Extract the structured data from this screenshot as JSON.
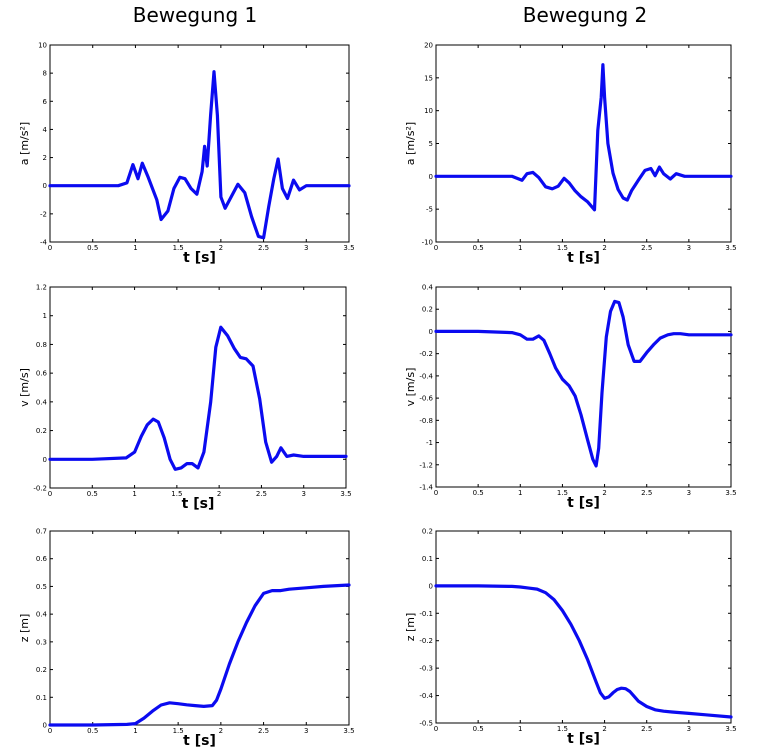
{
  "column_titles": [
    "Bewegung 1",
    "Bewegung 2"
  ],
  "chart_data": [
    {
      "type": "line",
      "xlabel": "t [s]",
      "ylabel": "a [m/s²]",
      "xlim": [
        0,
        3.5
      ],
      "ylim": [
        -4,
        10
      ],
      "xticks": [
        "0",
        "0.5",
        "1",
        "1.5",
        "2",
        "2.5",
        "3",
        "3.5"
      ],
      "yticks": [
        "-4",
        "-2",
        "0",
        "2",
        "4",
        "6",
        "8",
        "10"
      ],
      "x": [
        0,
        0.5,
        0.8,
        0.9,
        0.97,
        1.03,
        1.08,
        1.15,
        1.25,
        1.3,
        1.38,
        1.45,
        1.52,
        1.58,
        1.65,
        1.72,
        1.78,
        1.81,
        1.84,
        1.88,
        1.92,
        1.96,
        2.0,
        2.05,
        2.12,
        2.2,
        2.28,
        2.36,
        2.44,
        2.5,
        2.56,
        2.62,
        2.67,
        2.72,
        2.78,
        2.85,
        2.92,
        3.0,
        3.2,
        3.5
      ],
      "y": [
        0,
        0,
        0,
        0.2,
        1.5,
        0.5,
        1.6,
        0.6,
        -1.0,
        -2.4,
        -1.8,
        -0.2,
        0.6,
        0.5,
        -0.2,
        -0.6,
        1.0,
        2.8,
        1.4,
        5.0,
        8.1,
        5.0,
        -0.8,
        -1.6,
        -0.8,
        0.1,
        -0.5,
        -2.2,
        -3.6,
        -3.7,
        -1.5,
        0.5,
        1.9,
        -0.2,
        -0.9,
        0.4,
        -0.3,
        0,
        0,
        0
      ]
    },
    {
      "type": "line",
      "xlabel": "t [s]",
      "ylabel": "a [m/s²]",
      "xlim": [
        0,
        3.5
      ],
      "ylim": [
        -10,
        20
      ],
      "xticks": [
        "0",
        "0.5",
        "1",
        "1.5",
        "2",
        "2.5",
        "3",
        "3.5"
      ],
      "yticks": [
        "-10",
        "-5",
        "0",
        "5",
        "10",
        "15",
        "20"
      ],
      "x": [
        0,
        0.5,
        0.9,
        1.02,
        1.08,
        1.15,
        1.22,
        1.3,
        1.38,
        1.45,
        1.52,
        1.58,
        1.65,
        1.72,
        1.8,
        1.88,
        1.92,
        1.96,
        1.98,
        2.0,
        2.04,
        2.1,
        2.16,
        2.22,
        2.27,
        2.32,
        2.4,
        2.48,
        2.55,
        2.6,
        2.65,
        2.7,
        2.78,
        2.85,
        2.95,
        3.1,
        3.5
      ],
      "y": [
        0,
        0,
        0,
        -0.6,
        0.4,
        0.6,
        -0.2,
        -1.6,
        -1.9,
        -1.5,
        -0.3,
        -1.0,
        -2.2,
        -3.1,
        -3.9,
        -5.1,
        7.0,
        12.0,
        17.0,
        12.0,
        5.0,
        0.5,
        -2.0,
        -3.3,
        -3.6,
        -2.2,
        -0.6,
        0.9,
        1.2,
        0.1,
        1.4,
        0.4,
        -0.4,
        0.4,
        0.0,
        0,
        0
      ]
    },
    {
      "type": "line",
      "xlabel": "t [s]",
      "ylabel": "v [m/s]",
      "xlim": [
        0,
        3.5
      ],
      "ylim": [
        -0.2,
        1.2
      ],
      "xticks": [
        "0",
        "0.5",
        "1",
        "1.5",
        "2",
        "2.5",
        "3",
        "3.5"
      ],
      "yticks": [
        "-0.2",
        "0",
        "0.2",
        "0.4",
        "0.6",
        "0.8",
        "1",
        "1.2"
      ],
      "x": [
        0,
        0.5,
        0.9,
        1.0,
        1.08,
        1.15,
        1.22,
        1.28,
        1.35,
        1.42,
        1.48,
        1.55,
        1.62,
        1.68,
        1.75,
        1.82,
        1.9,
        1.96,
        2.02,
        2.1,
        2.18,
        2.25,
        2.32,
        2.4,
        2.48,
        2.55,
        2.62,
        2.68,
        2.73,
        2.8,
        2.88,
        3.0,
        3.5
      ],
      "y": [
        0,
        0,
        0.01,
        0.05,
        0.16,
        0.24,
        0.28,
        0.26,
        0.15,
        0.0,
        -0.07,
        -0.06,
        -0.03,
        -0.03,
        -0.06,
        0.05,
        0.4,
        0.78,
        0.92,
        0.86,
        0.77,
        0.71,
        0.7,
        0.65,
        0.42,
        0.12,
        -0.02,
        0.02,
        0.08,
        0.02,
        0.03,
        0.02,
        0.02
      ]
    },
    {
      "type": "line",
      "xlabel": "t [s]",
      "ylabel": "v [m/s]",
      "xlim": [
        0,
        3.5
      ],
      "ylim": [
        -1.4,
        0.4
      ],
      "xticks": [
        "0",
        "0.5",
        "1",
        "1.5",
        "2",
        "2.5",
        "3",
        "3.5"
      ],
      "yticks": [
        "-1.4",
        "-1.2",
        "-1",
        "-0.8",
        "-0.6",
        "-0.4",
        "-0.2",
        "0",
        "0.2",
        "0.4"
      ],
      "x": [
        0,
        0.5,
        0.9,
        1.0,
        1.08,
        1.15,
        1.22,
        1.28,
        1.35,
        1.42,
        1.5,
        1.58,
        1.65,
        1.72,
        1.8,
        1.86,
        1.9,
        1.93,
        1.97,
        2.02,
        2.07,
        2.12,
        2.17,
        2.22,
        2.28,
        2.35,
        2.42,
        2.5,
        2.58,
        2.66,
        2.75,
        2.82,
        2.9,
        3.0,
        3.2,
        3.5
      ],
      "y": [
        0,
        0,
        -0.01,
        -0.03,
        -0.07,
        -0.07,
        -0.04,
        -0.08,
        -0.2,
        -0.33,
        -0.43,
        -0.49,
        -0.58,
        -0.75,
        -0.98,
        -1.15,
        -1.21,
        -1.05,
        -0.55,
        -0.05,
        0.18,
        0.27,
        0.26,
        0.13,
        -0.12,
        -0.27,
        -0.27,
        -0.19,
        -0.12,
        -0.06,
        -0.03,
        -0.02,
        -0.02,
        -0.03,
        -0.03,
        -0.03
      ]
    },
    {
      "type": "line",
      "xlabel": "t [s]",
      "ylabel": "z [m]",
      "xlim": [
        0,
        3.5
      ],
      "ylim": [
        0,
        0.7
      ],
      "xticks": [
        "0",
        "0.5",
        "1",
        "1.5",
        "2",
        "2.5",
        "3",
        "3.5"
      ],
      "yticks": [
        "0",
        "0.1",
        "0.2",
        "0.3",
        "0.4",
        "0.5",
        "0.6",
        "0.7"
      ],
      "x": [
        0,
        0.5,
        0.9,
        1.0,
        1.1,
        1.2,
        1.3,
        1.4,
        1.5,
        1.6,
        1.7,
        1.8,
        1.9,
        1.95,
        2.0,
        2.1,
        2.2,
        2.3,
        2.4,
        2.5,
        2.6,
        2.7,
        2.8,
        3.0,
        3.2,
        3.5
      ],
      "y": [
        0,
        0,
        0.002,
        0.005,
        0.025,
        0.05,
        0.072,
        0.08,
        0.077,
        0.073,
        0.07,
        0.067,
        0.07,
        0.09,
        0.13,
        0.22,
        0.3,
        0.37,
        0.43,
        0.475,
        0.485,
        0.485,
        0.49,
        0.495,
        0.5,
        0.505
      ]
    },
    {
      "type": "line",
      "xlabel": "t [s]",
      "ylabel": "z [m]",
      "xlim": [
        0,
        3.5
      ],
      "ylim": [
        -0.5,
        0.2
      ],
      "xticks": [
        "0",
        "0.5",
        "1",
        "1.5",
        "2",
        "2.5",
        "3",
        "3.5"
      ],
      "yticks": [
        "-0.5",
        "-0.4",
        "-0.3",
        "-0.2",
        "-0.1",
        "0",
        "0.1",
        "0.2"
      ],
      "x": [
        0,
        0.5,
        0.9,
        1.0,
        1.1,
        1.2,
        1.3,
        1.4,
        1.5,
        1.6,
        1.7,
        1.8,
        1.9,
        1.95,
        2.0,
        2.05,
        2.1,
        2.15,
        2.2,
        2.25,
        2.3,
        2.4,
        2.5,
        2.6,
        2.7,
        2.8,
        3.0,
        3.2,
        3.5
      ],
      "y": [
        0,
        0,
        -0.002,
        -0.004,
        -0.008,
        -0.012,
        -0.025,
        -0.05,
        -0.09,
        -0.14,
        -0.2,
        -0.27,
        -0.35,
        -0.39,
        -0.41,
        -0.405,
        -0.39,
        -0.378,
        -0.373,
        -0.375,
        -0.385,
        -0.42,
        -0.44,
        -0.452,
        -0.457,
        -0.46,
        -0.465,
        -0.47,
        -0.478
      ]
    }
  ]
}
